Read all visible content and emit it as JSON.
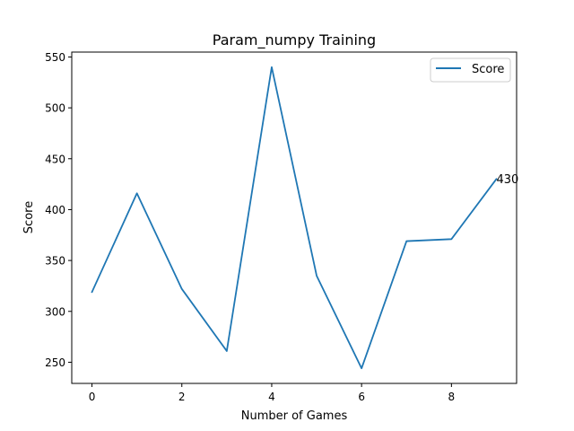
{
  "chart_data": {
    "type": "line",
    "title": "Param_numpy Training",
    "xlabel": "Number of Games",
    "ylabel": "Score",
    "x": [
      0,
      1,
      2,
      3,
      4,
      5,
      6,
      7,
      8,
      9
    ],
    "series": [
      {
        "name": "Score",
        "color": "#1f77b4",
        "values": [
          319,
          416,
          322,
          261,
          540,
          335,
          244,
          369,
          371,
          430
        ]
      }
    ],
    "xlim": [
      -0.45,
      9.45
    ],
    "ylim": [
      229.2,
      554.8
    ],
    "xticks": [
      0,
      2,
      4,
      6,
      8
    ],
    "yticks": [
      250,
      300,
      350,
      400,
      450,
      500,
      550
    ],
    "legend": "top-right",
    "grid": false,
    "annotation": {
      "x": 9,
      "y": 430,
      "text": "430"
    }
  }
}
